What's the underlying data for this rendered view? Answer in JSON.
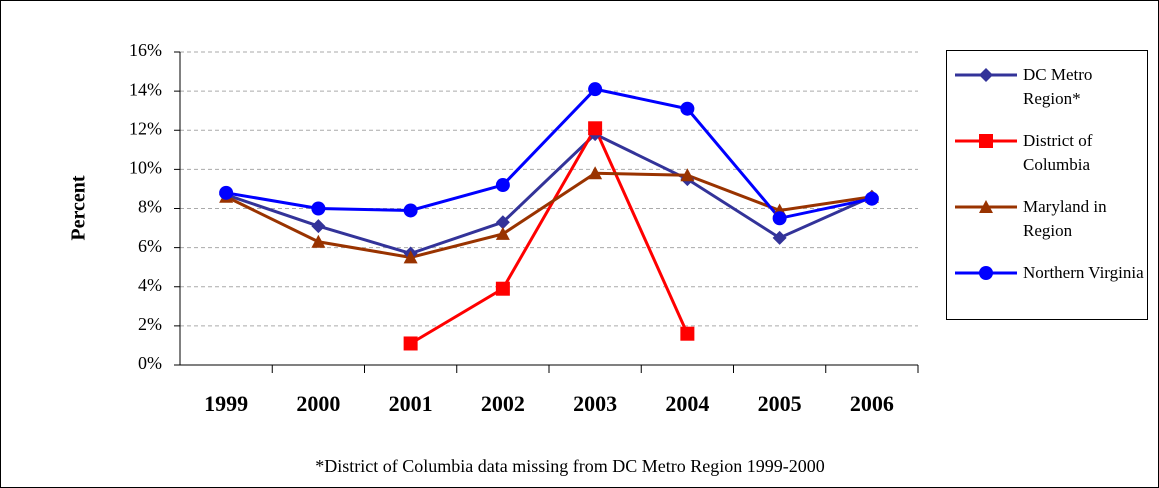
{
  "chart_data": {
    "type": "line",
    "y_label": "Percent",
    "footnote": "*District of Columbia data missing from DC Metro Region 1999-2000",
    "categories": [
      "1999",
      "2000",
      "2001",
      "2002",
      "2003",
      "2004",
      "2005",
      "2006"
    ],
    "series": [
      {
        "name": "DC Metro Region*",
        "color": "#333399",
        "marker": "diamond",
        "values": [
          8.7,
          7.1,
          5.7,
          7.3,
          11.8,
          9.5,
          6.5,
          8.6
        ]
      },
      {
        "name": "District of Columbia",
        "color": "#ff0000",
        "marker": "square",
        "values": [
          null,
          null,
          1.1,
          3.9,
          12.1,
          1.6,
          null,
          null
        ]
      },
      {
        "name": "Maryland in Region",
        "color": "#993300",
        "marker": "triangle",
        "values": [
          8.6,
          6.3,
          5.5,
          6.7,
          9.8,
          9.7,
          7.9,
          8.6
        ]
      },
      {
        "name": "Northern Virginia",
        "color": "#0000ff",
        "marker": "circle",
        "values": [
          8.8,
          8.0,
          7.9,
          9.2,
          14.1,
          13.1,
          7.5,
          8.5
        ]
      }
    ],
    "ylim": [
      0,
      16
    ],
    "yticks": [
      {
        "value": 0,
        "label": "0%"
      },
      {
        "value": 2,
        "label": "2%"
      },
      {
        "value": 4,
        "label": "4%"
      },
      {
        "value": 6,
        "label": "6%"
      },
      {
        "value": 8,
        "label": "8%"
      },
      {
        "value": 10,
        "label": "10%"
      },
      {
        "value": 12,
        "label": "12%"
      },
      {
        "value": 14,
        "label": "14%"
      },
      {
        "value": 16,
        "label": "16%"
      }
    ],
    "grid": true,
    "legend": "right"
  }
}
